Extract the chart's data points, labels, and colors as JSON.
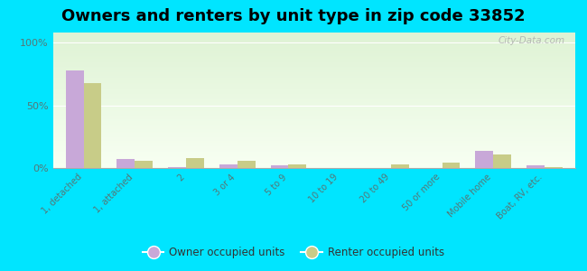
{
  "title": "Owners and renters by unit type in zip code 33852",
  "categories": [
    "1, detached",
    "1, attached",
    "2",
    "3 or 4",
    "5 to 9",
    "10 to 19",
    "20 to 49",
    "50 or more",
    "Mobile home",
    "Boat, RV, etc."
  ],
  "owner_values": [
    78,
    7,
    1,
    3,
    2,
    0,
    0,
    0,
    14,
    2
  ],
  "renter_values": [
    68,
    6,
    8,
    6,
    3,
    0,
    3,
    4,
    11,
    1
  ],
  "owner_color": "#c8a8d8",
  "renter_color": "#c8cc88",
  "title_fontsize": 13,
  "ylabel_ticks": [
    "0%",
    "50%",
    "100%"
  ],
  "ytick_values": [
    0,
    50,
    100
  ],
  "ylim": [
    0,
    108
  ],
  "bar_width": 0.35,
  "figure_bg": "#00e5ff",
  "watermark": "City-Data.com",
  "legend_owner": "Owner occupied units",
  "legend_renter": "Renter occupied units"
}
